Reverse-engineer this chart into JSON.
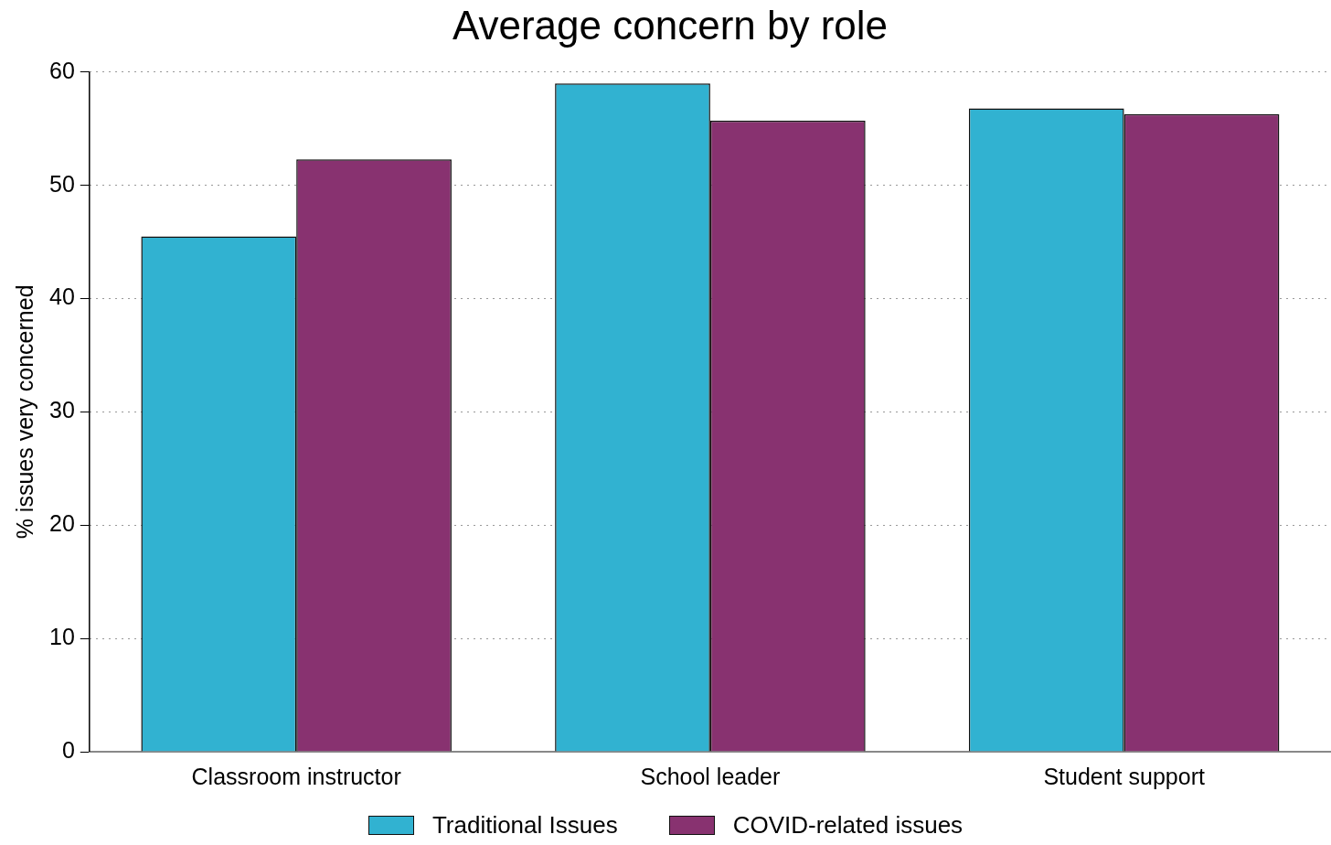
{
  "chart_data": {
    "type": "bar",
    "title": "Average concern by role",
    "ylabel": "% issues very concerned",
    "categories": [
      "Classroom instructor",
      "School leader",
      "Student support"
    ],
    "series": [
      {
        "name": "Traditional Issues",
        "color": "#31b2d1",
        "values": [
          45.5,
          59.0,
          56.8
        ]
      },
      {
        "name": "COVID-related issues",
        "color": "#883270",
        "values": [
          52.3,
          55.7,
          56.3
        ]
      }
    ],
    "ylim": [
      0,
      60
    ],
    "yticks": [
      0,
      10,
      20,
      30,
      40,
      50,
      60
    ],
    "grid": "y",
    "legend": "bottom"
  }
}
